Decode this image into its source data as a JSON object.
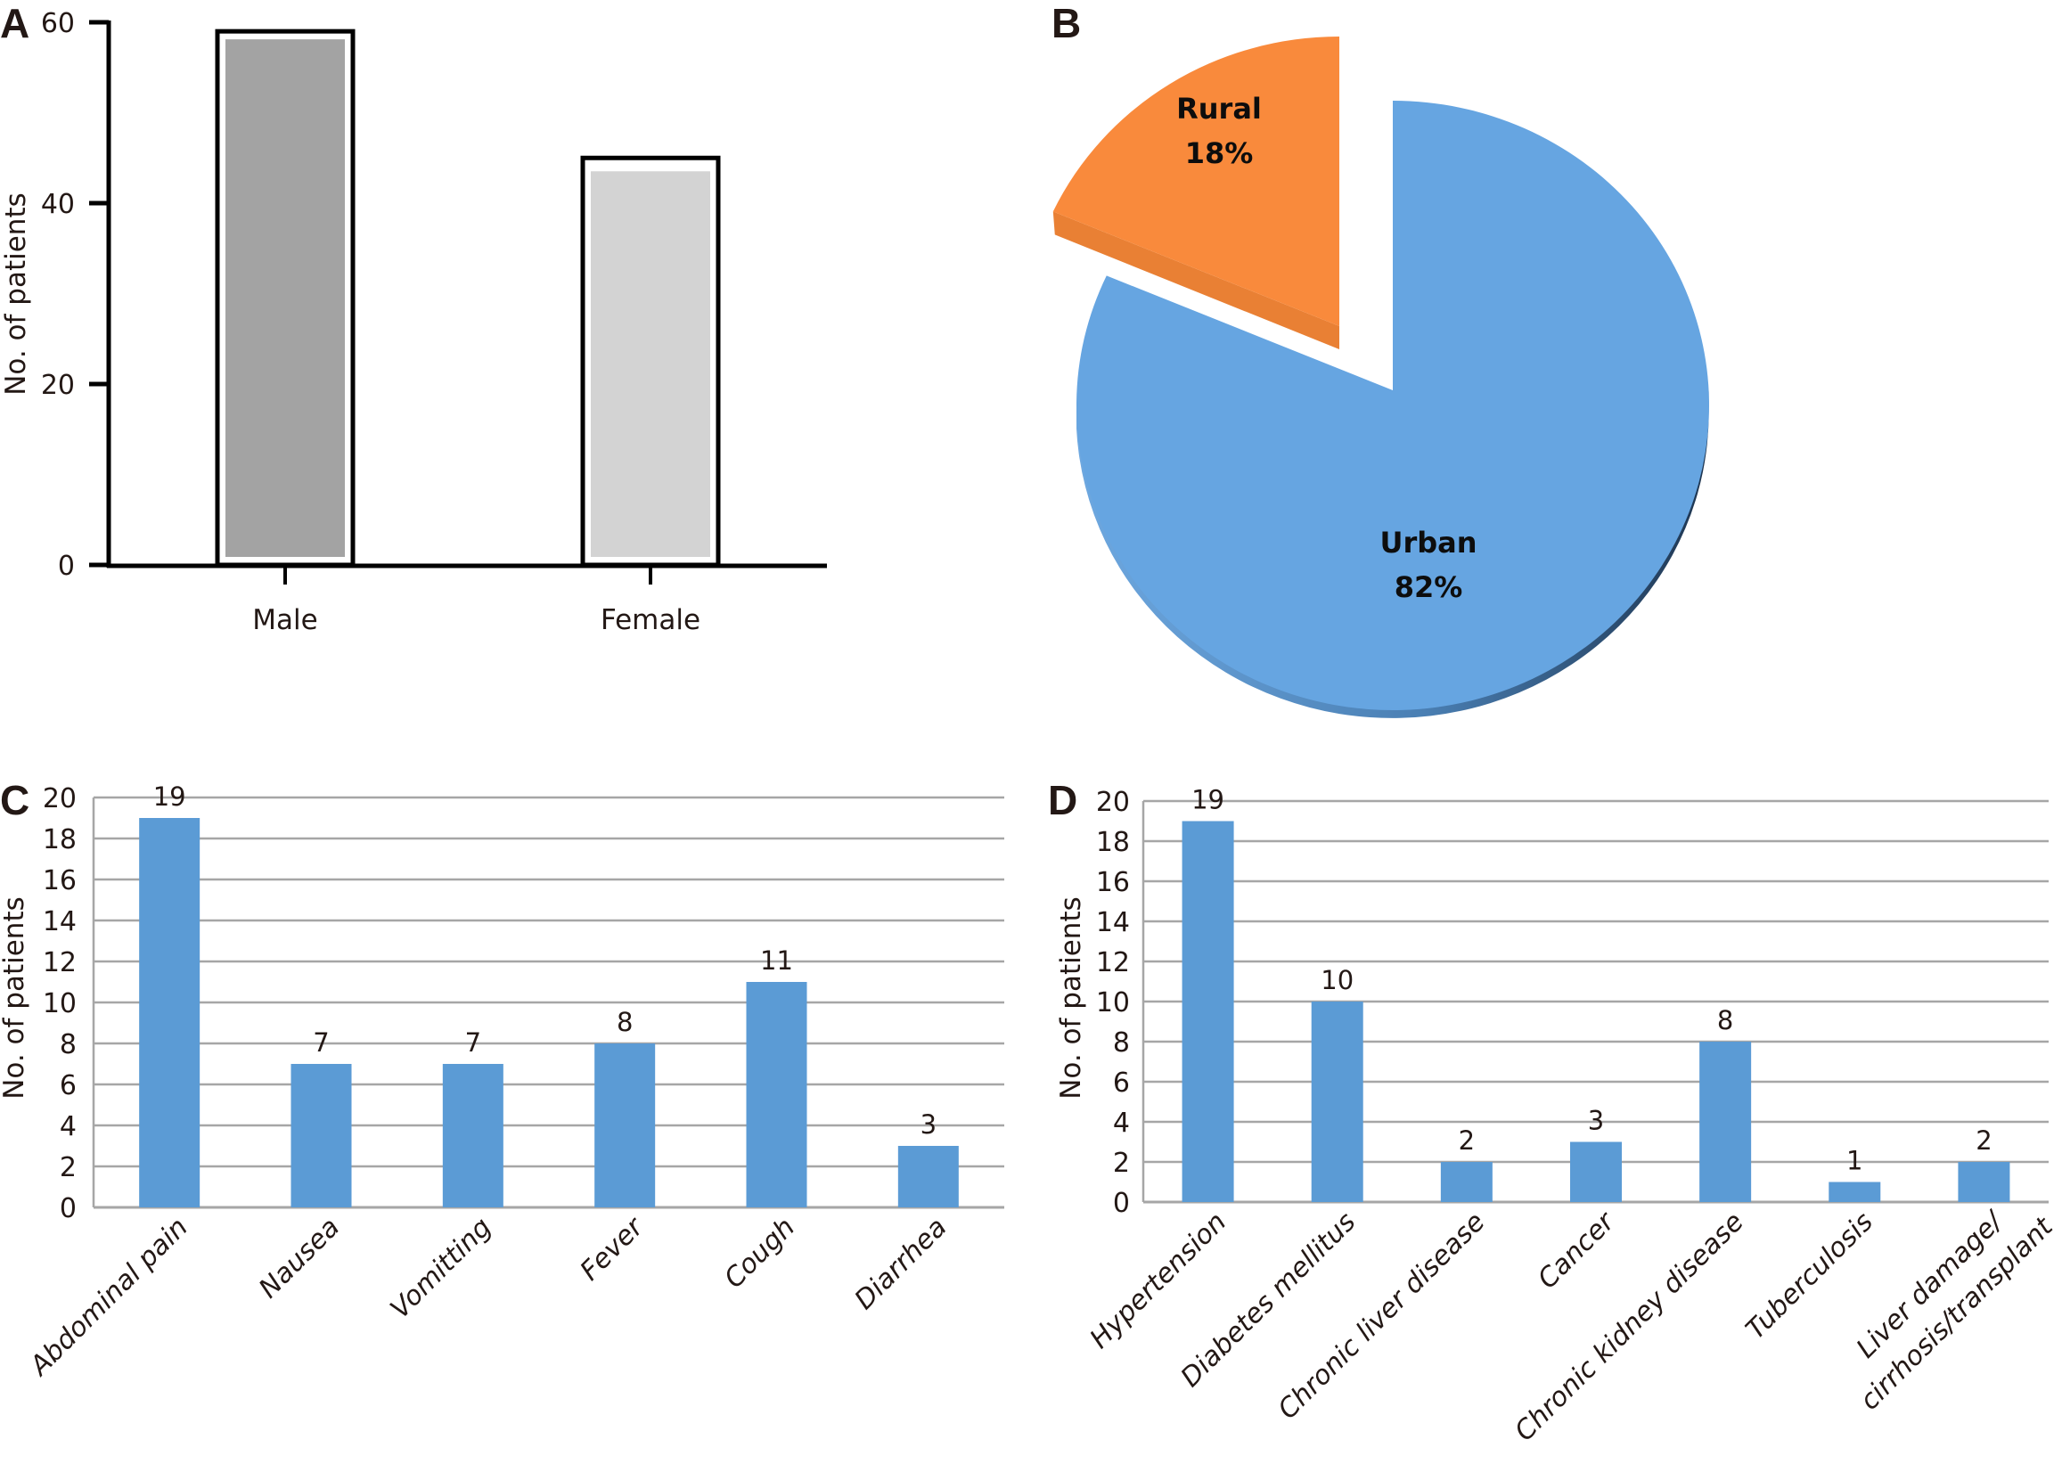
{
  "figure": {
    "panels": [
      "A",
      "B",
      "C",
      "D"
    ]
  },
  "chart_data": [
    {
      "panel": "A",
      "type": "bar",
      "title": "",
      "xlabel": "",
      "ylabel": "No. of patients",
      "categories": [
        "Male",
        "Female"
      ],
      "values": [
        59,
        45
      ],
      "ylim": [
        0,
        60
      ],
      "yticks": [
        0,
        20,
        40,
        60
      ],
      "grid": false,
      "colors": [
        "#a3a3a3",
        "#d3d3d3"
      ],
      "outline": "#000000"
    },
    {
      "panel": "B",
      "type": "pie",
      "title": "",
      "labels": [
        "Urban",
        "Rural"
      ],
      "values": [
        82,
        18
      ],
      "value_labels": [
        "82%",
        "18%"
      ],
      "colors": [
        "#66a5e1",
        "#f98a3c"
      ],
      "side_colors": [
        "#3f6f9e",
        "#e47c33"
      ],
      "exploded": [
        "Rural"
      ],
      "style": "3d"
    },
    {
      "panel": "C",
      "type": "bar",
      "title": "",
      "xlabel": "",
      "ylabel": "No. of patients",
      "categories": [
        "Abdominal pain",
        "Nausea",
        "Vomitting",
        "Fever",
        "Cough",
        "Diarrhea"
      ],
      "values": [
        19,
        7,
        7,
        8,
        11,
        3
      ],
      "data_labels": [
        "19",
        "7",
        "7",
        "8",
        "11",
        "3"
      ],
      "ylim": [
        0,
        20
      ],
      "yticks": [
        0,
        2,
        4,
        6,
        8,
        10,
        12,
        14,
        16,
        18,
        20
      ],
      "grid": true,
      "color": "#5b9bd5",
      "grid_color": "#a6a6a6"
    },
    {
      "panel": "D",
      "type": "bar",
      "title": "",
      "xlabel": "",
      "ylabel": "No. of patients",
      "categories": [
        "Hypertension",
        "Diabetes mellitus",
        "Chronic liver disease",
        "Cancer",
        "Chronic kidney disease",
        "Tuberculosis",
        "Liver damage/ cirrhosis/transplant"
      ],
      "category_lines": [
        [
          "Hypertension"
        ],
        [
          "Diabetes mellitus"
        ],
        [
          "Chronic liver disease"
        ],
        [
          "Cancer"
        ],
        [
          "Chronic kidney disease"
        ],
        [
          "Tuberculosis"
        ],
        [
          "Liver damage/",
          "cirrhosis/transplant"
        ]
      ],
      "values": [
        19,
        10,
        2,
        3,
        8,
        1,
        2
      ],
      "data_labels": [
        "19",
        "10",
        "2",
        "3",
        "8",
        "1",
        "2"
      ],
      "ylim": [
        0,
        20
      ],
      "yticks": [
        0,
        2,
        4,
        6,
        8,
        10,
        12,
        14,
        16,
        18,
        20
      ],
      "grid": true,
      "color": "#5b9bd5",
      "grid_color": "#a6a6a6"
    }
  ]
}
